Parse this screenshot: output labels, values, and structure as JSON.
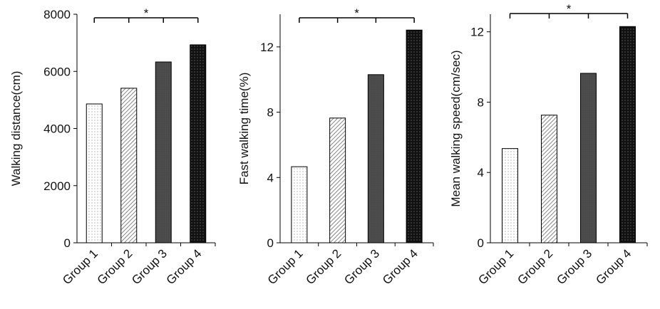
{
  "chart_data": [
    {
      "type": "bar",
      "ylabel": "Walking distance(cm)",
      "categories": [
        "Group 1",
        "Group 2",
        "Group 3",
        "Group 4"
      ],
      "values": [
        4860,
        5410,
        6330,
        6930
      ],
      "colors": [
        "#ffffff",
        "#e8e8e8",
        "#4a4a4a",
        "#111111"
      ],
      "ylim": [
        0,
        8000
      ],
      "yticks": [
        0,
        2000,
        4000,
        6000,
        8000
      ],
      "annotation": "*"
    },
    {
      "type": "bar",
      "ylabel": "Fast walking  time(%)",
      "categories": [
        "Group 1",
        "Group 2",
        "Group 3",
        "Group 4"
      ],
      "values": [
        4.66,
        7.64,
        10.3,
        13.03
      ],
      "colors": [
        "#ffffff",
        "#e8e8e8",
        "#4a4a4a",
        "#111111"
      ],
      "ylim": [
        0,
        14
      ],
      "yticks": [
        0,
        4,
        8,
        12
      ],
      "annotation": "*"
    },
    {
      "type": "bar",
      "ylabel": "Mean walking  speed(cm/sec)",
      "categories": [
        "Group 1",
        "Group 2",
        "Group 3",
        "Group 4"
      ],
      "values": [
        5.36,
        7.26,
        9.64,
        12.3
      ],
      "colors": [
        "#ffffff",
        "#e8e8e8",
        "#4a4a4a",
        "#111111"
      ],
      "ylim": [
        0,
        13
      ],
      "yticks": [
        0,
        4,
        8,
        12
      ],
      "annotation": "*"
    }
  ]
}
